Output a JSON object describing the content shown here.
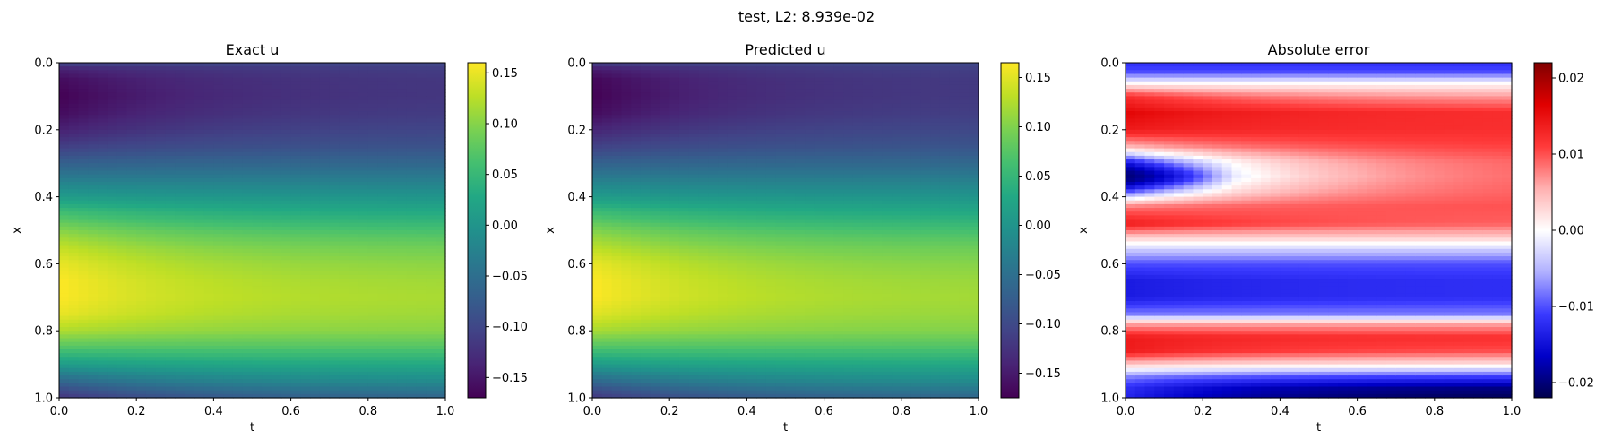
{
  "suptitle": "test, L2: 8.939e-02",
  "chart_data": [
    {
      "type": "heatmap",
      "title": "Exact u",
      "xlabel": "t",
      "ylabel": "x",
      "xlim": [
        0.0,
        1.0
      ],
      "ylim": [
        1.0,
        0.0
      ],
      "xticks": [
        "0.0",
        "0.2",
        "0.4",
        "0.6",
        "0.8",
        "1.0"
      ],
      "yticks": [
        "0.0",
        "0.2",
        "0.4",
        "0.6",
        "0.8",
        "1.0"
      ],
      "colormap": "viridis",
      "color_range": [
        -0.17,
        0.16
      ],
      "colorbar_ticks": [
        "0.15",
        "0.10",
        "0.05",
        "0.00",
        "−0.05",
        "−0.10",
        "−0.15"
      ],
      "profile_x": [
        0.0,
        0.02,
        0.05,
        0.1,
        0.15,
        0.2,
        0.25,
        0.3,
        0.35,
        0.4,
        0.45,
        0.5,
        0.55,
        0.6,
        0.65,
        0.7,
        0.75,
        0.8,
        0.85,
        0.9,
        0.95,
        0.98,
        1.0
      ],
      "profile_u_t0": [
        -0.1,
        -0.14,
        -0.16,
        -0.17,
        -0.16,
        -0.14,
        -0.11,
        -0.07,
        -0.03,
        0.01,
        0.06,
        0.1,
        0.13,
        0.15,
        0.16,
        0.16,
        0.15,
        0.12,
        0.07,
        0.01,
        -0.06,
        -0.1,
        -0.12
      ],
      "profile_u_t1": [
        -0.1,
        -0.11,
        -0.115,
        -0.115,
        -0.11,
        -0.1,
        -0.085,
        -0.06,
        -0.03,
        0.0,
        0.03,
        0.06,
        0.085,
        0.1,
        0.11,
        0.115,
        0.11,
        0.1,
        0.07,
        0.03,
        -0.01,
        -0.04,
        -0.06
      ]
    },
    {
      "type": "heatmap",
      "title": "Predicted u",
      "xlabel": "t",
      "ylabel": "x",
      "xlim": [
        0.0,
        1.0
      ],
      "ylim": [
        1.0,
        0.0
      ],
      "xticks": [
        "0.0",
        "0.2",
        "0.4",
        "0.6",
        "0.8",
        "1.0"
      ],
      "yticks": [
        "0.0",
        "0.2",
        "0.4",
        "0.6",
        "0.8",
        "1.0"
      ],
      "colormap": "viridis",
      "color_range": [
        -0.175,
        0.165
      ],
      "colorbar_ticks": [
        "0.15",
        "0.10",
        "0.05",
        "0.00",
        "−0.05",
        "−0.10",
        "−0.15"
      ],
      "profile_x": [
        0.0,
        0.02,
        0.05,
        0.1,
        0.15,
        0.2,
        0.25,
        0.3,
        0.35,
        0.4,
        0.45,
        0.5,
        0.55,
        0.6,
        0.65,
        0.7,
        0.75,
        0.8,
        0.85,
        0.9,
        0.95,
        0.98,
        1.0
      ],
      "profile_u_t0": [
        -0.11,
        -0.15,
        -0.17,
        -0.175,
        -0.165,
        -0.14,
        -0.11,
        -0.07,
        -0.03,
        0.01,
        0.06,
        0.1,
        0.13,
        0.155,
        0.165,
        0.165,
        0.15,
        0.12,
        0.07,
        0.01,
        -0.06,
        -0.1,
        -0.12
      ],
      "profile_u_t1": [
        -0.1,
        -0.11,
        -0.115,
        -0.115,
        -0.11,
        -0.1,
        -0.085,
        -0.06,
        -0.03,
        0.0,
        0.03,
        0.06,
        0.085,
        0.1,
        0.11,
        0.115,
        0.11,
        0.1,
        0.07,
        0.03,
        -0.01,
        -0.04,
        -0.06
      ]
    },
    {
      "type": "heatmap",
      "title": "Absolute error",
      "xlabel": "t",
      "ylabel": "x",
      "xlim": [
        0.0,
        1.0
      ],
      "ylim": [
        1.0,
        0.0
      ],
      "xticks": [
        "0.0",
        "0.2",
        "0.4",
        "0.6",
        "0.8",
        "1.0"
      ],
      "yticks": [
        "0.0",
        "0.2",
        "0.4",
        "0.6",
        "0.8",
        "1.0"
      ],
      "colormap": "seismic",
      "color_range": [
        -0.022,
        0.022
      ],
      "colorbar_ticks": [
        "0.02",
        "0.01",
        "0.00",
        "−0.01",
        "−0.02"
      ],
      "profile_x": [
        0.0,
        0.03,
        0.06,
        0.1,
        0.15,
        0.2,
        0.25,
        0.3,
        0.34,
        0.38,
        0.43,
        0.48,
        0.52,
        0.56,
        0.6,
        0.65,
        0.7,
        0.75,
        0.78,
        0.82,
        0.86,
        0.9,
        0.94,
        0.97,
        1.0
      ],
      "profile_err_t0": [
        -0.012,
        -0.01,
        0.0,
        0.012,
        0.016,
        0.014,
        0.005,
        -0.012,
        -0.016,
        -0.008,
        0.008,
        0.014,
        0.004,
        -0.004,
        -0.01,
        -0.014,
        -0.014,
        -0.008,
        0.006,
        0.014,
        0.014,
        0.004,
        -0.008,
        -0.012,
        -0.013
      ],
      "profile_err_t1": [
        -0.012,
        -0.01,
        0.0,
        0.006,
        0.012,
        0.012,
        0.011,
        0.01,
        0.01,
        0.01,
        0.01,
        0.009,
        0.004,
        -0.004,
        -0.01,
        -0.012,
        -0.012,
        -0.008,
        0.006,
        0.012,
        0.01,
        0.002,
        -0.012,
        -0.02,
        -0.022
      ]
    }
  ]
}
